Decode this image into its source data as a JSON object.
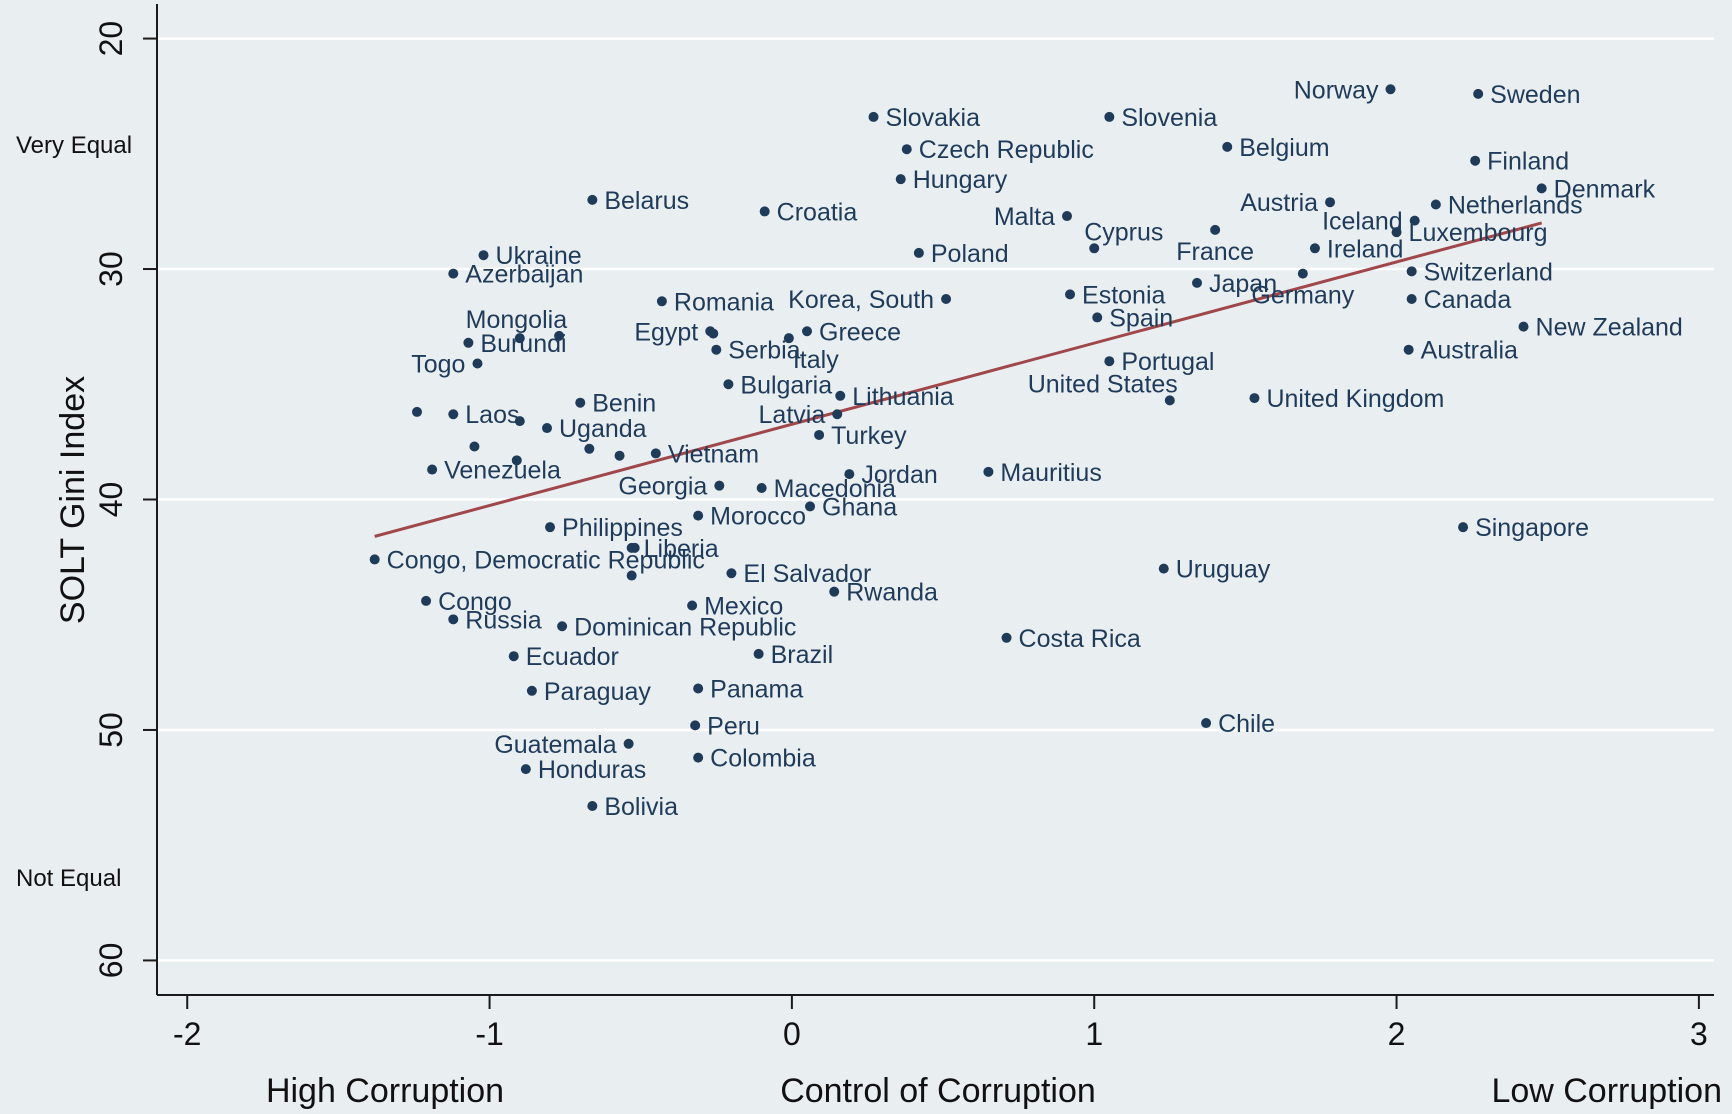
{
  "chart_data": {
    "type": "scatter",
    "xlabel": "Control of Corruption",
    "ylabel": "SOLT Gini Index",
    "x_left_note": "High Corruption",
    "x_right_note": "Low Corruption",
    "y_top_note": "Very Equal",
    "y_bottom_note": "Not Equal",
    "xlim": [
      -2.1,
      3.05
    ],
    "ylim": [
      61.5,
      18.5
    ],
    "y_reversed": true,
    "xticks": [
      -2,
      -1,
      0,
      1,
      2,
      3
    ],
    "xtick_labels": [
      "-2",
      "-1",
      "0",
      "1",
      "2",
      "3"
    ],
    "yticks": [
      20,
      30,
      40,
      50,
      60
    ],
    "ytick_labels": [
      "20",
      "30",
      "40",
      "50",
      "60"
    ],
    "grid": true,
    "fit_line": {
      "x": [
        -1.38,
        2.48
      ],
      "y": [
        41.6,
        28.0
      ]
    },
    "points": [
      {
        "label": "Norway",
        "x": 1.98,
        "y": 22.2,
        "pos": "left"
      },
      {
        "label": "Sweden",
        "x": 2.27,
        "y": 22.4,
        "pos": "right"
      },
      {
        "label": "Slovakia",
        "x": 0.27,
        "y": 23.4,
        "pos": "right"
      },
      {
        "label": "Slovenia",
        "x": 1.05,
        "y": 23.4,
        "pos": "right"
      },
      {
        "label": "Czech Republic",
        "x": 0.38,
        "y": 24.8,
        "pos": "right"
      },
      {
        "label": "Belgium",
        "x": 1.44,
        "y": 24.7,
        "pos": "right"
      },
      {
        "label": "Finland",
        "x": 2.26,
        "y": 25.3,
        "pos": "right"
      },
      {
        "label": "Hungary",
        "x": 0.36,
        "y": 26.1,
        "pos": "right"
      },
      {
        "label": "Denmark",
        "x": 2.48,
        "y": 26.5,
        "pos": "right"
      },
      {
        "label": "Belarus",
        "x": -0.66,
        "y": 27.0,
        "pos": "right"
      },
      {
        "label": "Croatia",
        "x": -0.09,
        "y": 27.5,
        "pos": "right"
      },
      {
        "label": "Austria",
        "x": 1.78,
        "y": 27.1,
        "pos": "left"
      },
      {
        "label": "Netherlands",
        "x": 2.13,
        "y": 27.2,
        "pos": "right"
      },
      {
        "label": "Malta",
        "x": 0.91,
        "y": 27.7,
        "pos": "left"
      },
      {
        "label": "Cyprus",
        "x": 1.0,
        "y": 29.1,
        "pos": "topright"
      },
      {
        "label": "Iceland",
        "x": 2.06,
        "y": 27.9,
        "pos": "left"
      },
      {
        "label": "Luxembourg",
        "x": 2.0,
        "y": 28.4,
        "pos": "right"
      },
      {
        "label": "Ireland",
        "x": 1.73,
        "y": 29.1,
        "pos": "right"
      },
      {
        "label": "Switzerland",
        "x": 2.05,
        "y": 30.1,
        "pos": "right"
      },
      {
        "label": "France",
        "x": 1.4,
        "y": 28.3,
        "pos": "below"
      },
      {
        "label": "Japan",
        "x": 1.34,
        "y": 30.6,
        "pos": "right"
      },
      {
        "label": "Germany",
        "x": 1.69,
        "y": 30.2,
        "pos": "below"
      },
      {
        "label": "Canada",
        "x": 2.05,
        "y": 31.3,
        "pos": "right"
      },
      {
        "label": "Ukraine",
        "x": -1.02,
        "y": 29.4,
        "pos": "right"
      },
      {
        "label": "Azerbaijan",
        "x": -1.12,
        "y": 30.2,
        "pos": "right"
      },
      {
        "label": "Poland",
        "x": 0.42,
        "y": 29.3,
        "pos": "right"
      },
      {
        "label": "Korea, South",
        "x": 0.51,
        "y": 31.3,
        "pos": "left"
      },
      {
        "label": "Estonia",
        "x": 0.92,
        "y": 31.1,
        "pos": "right"
      },
      {
        "label": "Spain",
        "x": 1.01,
        "y": 32.1,
        "pos": "right"
      },
      {
        "label": "New Zealand",
        "x": 2.42,
        "y": 32.5,
        "pos": "right"
      },
      {
        "label": "Australia",
        "x": 2.04,
        "y": 33.5,
        "pos": "right"
      },
      {
        "label": "Romania",
        "x": -0.43,
        "y": 31.4,
        "pos": "right"
      },
      {
        "label": "Mongolia",
        "x": -0.77,
        "y": 32.9,
        "pos": "topleft"
      },
      {
        "label": "Burundi",
        "x": -1.07,
        "y": 33.2,
        "pos": "right"
      },
      {
        "label": "Togo",
        "x": -1.04,
        "y": 34.1,
        "pos": "left"
      },
      {
        "label": "Egypt",
        "x": -0.27,
        "y": 32.7,
        "pos": "left"
      },
      {
        "label": "Greece",
        "x": 0.05,
        "y": 32.7,
        "pos": "right"
      },
      {
        "label": "Serbia",
        "x": -0.25,
        "y": 33.5,
        "pos": "right"
      },
      {
        "label": "Italy",
        "x": -0.01,
        "y": 33.0,
        "pos": "bottomright"
      },
      {
        "label": "Portugal",
        "x": 1.05,
        "y": 34.0,
        "pos": "right"
      },
      {
        "label": "United States",
        "x": 1.25,
        "y": 35.7,
        "pos": "topleft"
      },
      {
        "label": "United Kingdom",
        "x": 1.53,
        "y": 35.6,
        "pos": "right"
      },
      {
        "label": "Bulgaria",
        "x": -0.21,
        "y": 35.0,
        "pos": "right"
      },
      {
        "label": "Lithuania",
        "x": 0.16,
        "y": 35.5,
        "pos": "right"
      },
      {
        "label": "Benin",
        "x": -0.7,
        "y": 35.8,
        "pos": "right"
      },
      {
        "label": "Laos",
        "x": -1.12,
        "y": 36.3,
        "pos": "right"
      },
      {
        "label": "Latvia",
        "x": 0.15,
        "y": 36.3,
        "pos": "left"
      },
      {
        "label": "Turkey",
        "x": 0.09,
        "y": 37.2,
        "pos": "right"
      },
      {
        "label": "Uganda",
        "x": -0.81,
        "y": 36.9,
        "pos": "right"
      },
      {
        "label": "Vietnam",
        "x": -0.45,
        "y": 38.0,
        "pos": "right"
      },
      {
        "label": "Venezuela",
        "x": -1.19,
        "y": 38.7,
        "pos": "right"
      },
      {
        "label": "Jordan",
        "x": 0.19,
        "y": 38.9,
        "pos": "right"
      },
      {
        "label": "Mauritius",
        "x": 0.65,
        "y": 38.8,
        "pos": "right"
      },
      {
        "label": "Georgia",
        "x": -0.24,
        "y": 39.4,
        "pos": "left"
      },
      {
        "label": "Macedonia",
        "x": -0.1,
        "y": 39.5,
        "pos": "right"
      },
      {
        "label": "Ghana",
        "x": 0.06,
        "y": 40.3,
        "pos": "right"
      },
      {
        "label": "Morocco",
        "x": -0.31,
        "y": 40.7,
        "pos": "right"
      },
      {
        "label": "Singapore",
        "x": 2.22,
        "y": 41.2,
        "pos": "right"
      },
      {
        "label": "Philippines",
        "x": -0.8,
        "y": 41.2,
        "pos": "right"
      },
      {
        "label": "Congo, Democratic Republic",
        "x": -1.38,
        "y": 42.6,
        "pos": "right"
      },
      {
        "label": "Liberia",
        "x": -0.53,
        "y": 42.1,
        "pos": "right"
      },
      {
        "label": "El Salvador",
        "x": -0.2,
        "y": 43.2,
        "pos": "right"
      },
      {
        "label": "Uruguay",
        "x": 1.23,
        "y": 43.0,
        "pos": "right"
      },
      {
        "label": "Rwanda",
        "x": 0.14,
        "y": 44.0,
        "pos": "right"
      },
      {
        "label": "Congo",
        "x": -1.21,
        "y": 44.4,
        "pos": "right"
      },
      {
        "label": "Mexico",
        "x": -0.33,
        "y": 44.6,
        "pos": "right"
      },
      {
        "label": "Russia",
        "x": -1.12,
        "y": 45.2,
        "pos": "right"
      },
      {
        "label": "Dominican Republic",
        "x": -0.76,
        "y": 45.5,
        "pos": "right"
      },
      {
        "label": "Costa Rica",
        "x": 0.71,
        "y": 46.0,
        "pos": "right"
      },
      {
        "label": "Brazil",
        "x": -0.11,
        "y": 46.7,
        "pos": "right"
      },
      {
        "label": "Ecuador",
        "x": -0.92,
        "y": 46.8,
        "pos": "right"
      },
      {
        "label": "Panama",
        "x": -0.31,
        "y": 48.2,
        "pos": "right"
      },
      {
        "label": "Paraguay",
        "x": -0.86,
        "y": 48.3,
        "pos": "right"
      },
      {
        "label": "Chile",
        "x": 1.37,
        "y": 49.7,
        "pos": "right"
      },
      {
        "label": "Peru",
        "x": -0.32,
        "y": 49.8,
        "pos": "right"
      },
      {
        "label": "Guatemala",
        "x": -0.54,
        "y": 50.6,
        "pos": "left"
      },
      {
        "label": "Colombia",
        "x": -0.31,
        "y": 51.2,
        "pos": "right"
      },
      {
        "label": "Honduras",
        "x": -0.88,
        "y": 51.7,
        "pos": "right"
      },
      {
        "label": "Bolivia",
        "x": -0.66,
        "y": 53.3,
        "pos": "right"
      }
    ],
    "extra_points": [
      {
        "x": -1.24,
        "y": 36.2
      },
      {
        "x": -1.05,
        "y": 37.7
      },
      {
        "x": -0.9,
        "y": 36.6
      },
      {
        "x": -0.91,
        "y": 38.3
      },
      {
        "x": -0.67,
        "y": 37.8
      },
      {
        "x": -0.57,
        "y": 38.1
      },
      {
        "x": -0.52,
        "y": 42.1
      },
      {
        "x": -0.53,
        "y": 43.3
      },
      {
        "x": -0.26,
        "y": 32.8
      },
      {
        "x": -0.9,
        "y": 33.0
      }
    ]
  }
}
